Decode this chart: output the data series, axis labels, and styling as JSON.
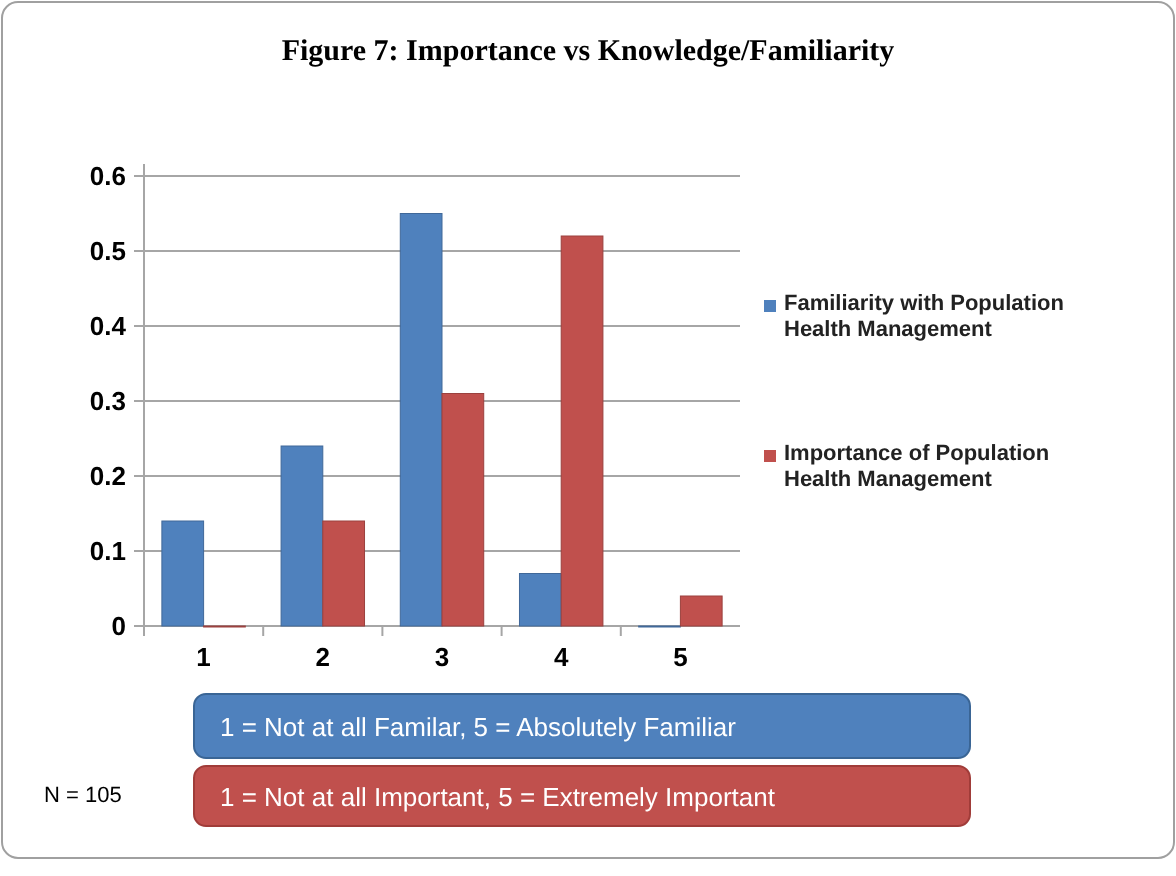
{
  "chart_data": {
    "type": "bar",
    "title": "Figure 7: Importance vs Knowledge/Familiarity",
    "categories": [
      "1",
      "2",
      "3",
      "4",
      "5"
    ],
    "series": [
      {
        "name": "Familiarity with Population Health Management",
        "color": "#4f81bd",
        "values": [
          0.14,
          0.24,
          0.55,
          0.07,
          0
        ]
      },
      {
        "name": "Importance of Population Health Management",
        "color": "#c0504d",
        "values": [
          0,
          0.14,
          0.31,
          0.52,
          0.04
        ]
      }
    ],
    "ylim": [
      0,
      0.6
    ],
    "yticks": [
      0,
      0.1,
      0.2,
      0.3,
      0.4,
      0.5,
      0.6
    ],
    "grid": "y",
    "legend": "right",
    "annotations": [
      "1 =  Not at all Familar,  5 = Absolutely Familiar",
      "1 =  Not at all  Important,  5 = Extremely Important",
      "N = 105"
    ]
  }
}
